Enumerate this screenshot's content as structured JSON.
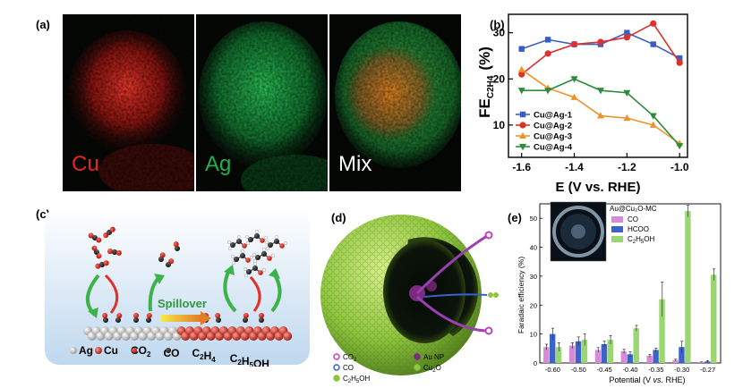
{
  "panel_labels": {
    "a": "(a)",
    "b": "(b)",
    "c": "(c)",
    "d": "(d)",
    "e": "(e)"
  },
  "panel_a": {
    "maps": [
      {
        "label": "Cu",
        "color": "#e8241f"
      },
      {
        "label": "Ag",
        "color": "#1fb04a"
      },
      {
        "label": "Mix",
        "color": "#ffffff"
      }
    ]
  },
  "panel_c": {
    "spillover_label": "Spillover",
    "legend": [
      "Ag",
      "Cu",
      "CO",
      "CO",
      "C",
      "H",
      "C",
      "H",
      "OH"
    ],
    "legend_items": [
      {
        "text": "Ag",
        "sub": ""
      },
      {
        "text": "Cu",
        "sub": ""
      },
      {
        "text": "CO",
        "sub": "2"
      },
      {
        "text": "CO",
        "sub": ""
      },
      {
        "text": "C",
        "sub": "2"
      },
      {
        "text": "H",
        "sub": "4"
      },
      {
        "text": "C",
        "sub": "2"
      },
      {
        "text": "H",
        "sub": "5"
      },
      {
        "text": "OH",
        "sub": ""
      }
    ]
  },
  "panel_d": {
    "legend": [
      {
        "label": "CO",
        "sub": "2",
        "color": "#c040c0"
      },
      {
        "label": "Au NP",
        "sub": "",
        "color": "#7a2a80"
      },
      {
        "label": "CO",
        "sub": "",
        "color": "#3a5fcf"
      },
      {
        "label": "Cu",
        "sub": "2",
        "tail": "O",
        "color": "#8cc63f"
      },
      {
        "label": "C",
        "sub": "2",
        "tail": "H",
        "sub2": "5",
        "tail2": "OH",
        "color": "#8cc63f"
      }
    ]
  },
  "chart_data": [
    {
      "type": "line",
      "panel": "b",
      "xlabel": "E (V vs. RHE)",
      "ylabel_main": "FE",
      "ylabel_sub": "C2H4",
      "ylabel_unit": "(%)",
      "xlim": [
        -1.65,
        -0.97
      ],
      "ylim": [
        3,
        34
      ],
      "x_ticks": [
        -1.6,
        -1.4,
        -1.2,
        -1.0
      ],
      "x_tick_labels": [
        "-1.6",
        "-1.4",
        "-1.2",
        "-1.0"
      ],
      "y_ticks": [
        10,
        20,
        30
      ],
      "y_tick_labels": [
        "10",
        "20",
        "30"
      ],
      "legend_position": "bottom-left",
      "series": [
        {
          "name": "Cu@Ag-1",
          "color": "#3a5cc7",
          "marker": "square",
          "x": [
            -1.6,
            -1.5,
            -1.4,
            -1.3,
            -1.2,
            -1.1,
            -1.0
          ],
          "y": [
            26.5,
            28.5,
            27.5,
            27.5,
            30.0,
            27.5,
            24.5
          ]
        },
        {
          "name": "Cu@Ag-2",
          "color": "#e0302a",
          "marker": "circle",
          "x": [
            -1.6,
            -1.5,
            -1.4,
            -1.3,
            -1.2,
            -1.1,
            -1.0
          ],
          "y": [
            21.0,
            25.5,
            27.5,
            28.0,
            29.0,
            32.0,
            23.5
          ]
        },
        {
          "name": "Cu@Ag-3",
          "color": "#f0922b",
          "marker": "triangle-up",
          "x": [
            -1.6,
            -1.5,
            -1.4,
            -1.3,
            -1.2,
            -1.1,
            -1.0
          ],
          "y": [
            22.0,
            18.0,
            16.0,
            12.0,
            11.5,
            10.0,
            6.0
          ]
        },
        {
          "name": "Cu@Ag-4",
          "color": "#2e8b3a",
          "marker": "triangle-down",
          "x": [
            -1.6,
            -1.5,
            -1.4,
            -1.3,
            -1.2,
            -1.1,
            -1.0
          ],
          "y": [
            17.5,
            17.5,
            20.0,
            17.5,
            17.0,
            12.0,
            5.5
          ]
        }
      ]
    },
    {
      "type": "bar",
      "panel": "e",
      "xlabel_pre": "Potential (V ",
      "xlabel_italic": "vs.",
      "xlabel_post": " RHE)",
      "ylabel": "Faradaic efficiency (%)",
      "ylim": [
        0,
        55
      ],
      "y_ticks": [
        0,
        10,
        20,
        30,
        40,
        50
      ],
      "y_tick_labels": [
        "0",
        "10",
        "20",
        "30",
        "40",
        "50"
      ],
      "categories": [
        "-0.60",
        "-0.50",
        "-0.45",
        "-0.40",
        "-0.35",
        "-0.30",
        "-0.27"
      ],
      "inset_title": "Au@Cu₂O-MC",
      "series": [
        {
          "name": "CO",
          "color": "#d98ad6",
          "values": [
            5.5,
            6.0,
            4.5,
            4.0,
            2.5,
            1.0,
            0.3
          ],
          "errors": [
            1.0,
            1.0,
            0.8,
            0.7,
            0.5,
            0.3,
            0.1
          ]
        },
        {
          "name": "HCOO",
          "color": "#3b63c9",
          "values": [
            10.0,
            7.5,
            6.5,
            3.0,
            4.5,
            5.5,
            0.5
          ],
          "errors": [
            2.0,
            1.5,
            1.0,
            0.8,
            0.6,
            2.0,
            0.2
          ]
        },
        {
          "name": "C2H5OH",
          "color": "#9ad672",
          "values": [
            5.5,
            8.0,
            8.0,
            12.0,
            22.0,
            52.5,
            30.5
          ],
          "errors": [
            1.5,
            2.0,
            1.5,
            1.0,
            6.0,
            2.0,
            2.0
          ]
        }
      ]
    }
  ]
}
